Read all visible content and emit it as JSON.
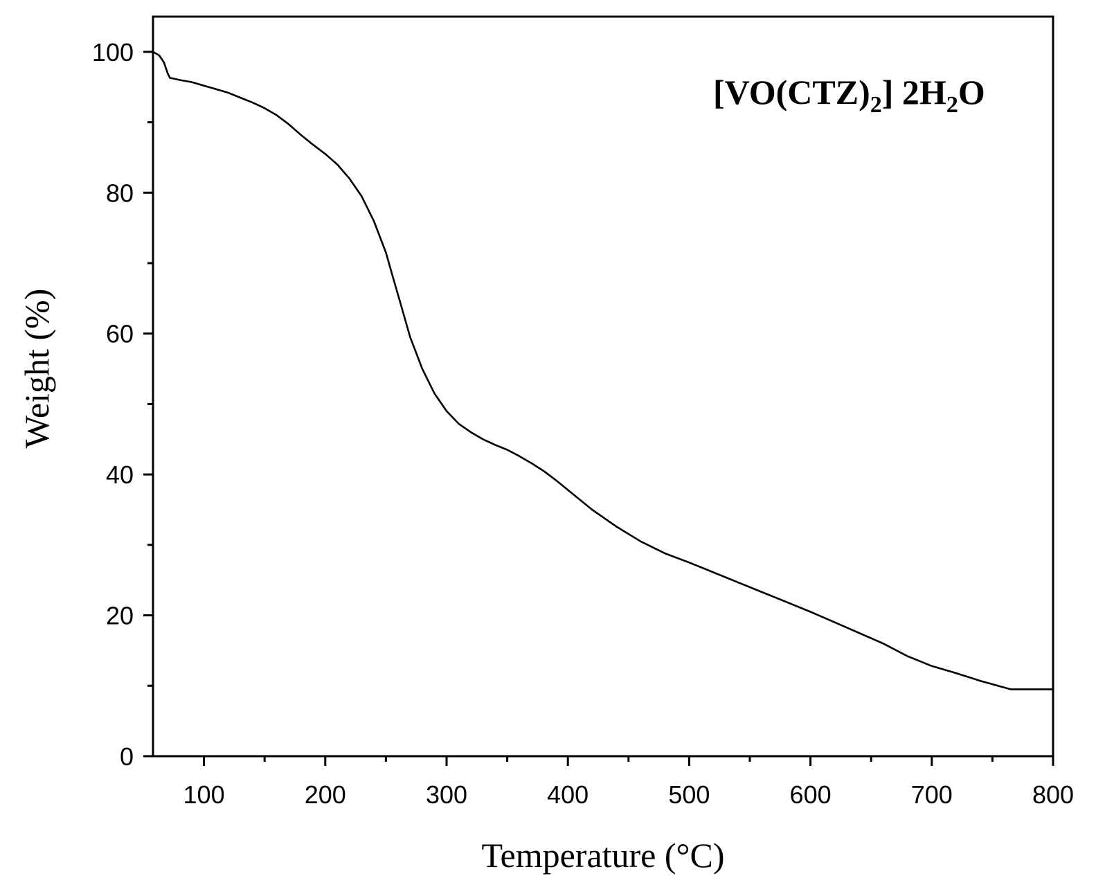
{
  "chart_data": {
    "type": "line",
    "xlabel": "Temperature (°C)",
    "ylabel": "Weight (%)",
    "xlim": [
      58,
      800
    ],
    "ylim": [
      0,
      105
    ],
    "x_ticks": [
      100,
      200,
      300,
      400,
      500,
      600,
      700,
      800
    ],
    "y_ticks": [
      0,
      20,
      40,
      60,
      80,
      100
    ],
    "annotation": {
      "parts": [
        {
          "text": "[VO(CTZ)",
          "sub": false
        },
        {
          "text": "2",
          "sub": true
        },
        {
          "text": "] 2H",
          "sub": false
        },
        {
          "text": "2",
          "sub": true
        },
        {
          "text": "O",
          "sub": false
        }
      ],
      "position": "top-right"
    },
    "grid": false,
    "legend": "none",
    "line_color": "#000000",
    "series": [
      {
        "x": [
          58,
          63,
          67,
          70,
          72,
          75,
          80,
          90,
          100,
          110,
          120,
          130,
          140,
          150,
          160,
          170,
          180,
          190,
          200,
          210,
          220,
          230,
          240,
          250,
          255,
          260,
          265,
          270,
          280,
          290,
          300,
          310,
          320,
          330,
          340,
          350,
          360,
          370,
          380,
          390,
          400,
          420,
          440,
          460,
          480,
          500,
          520,
          540,
          560,
          580,
          600,
          620,
          640,
          660,
          680,
          700,
          720,
          740,
          765,
          800
        ],
        "y": [
          100,
          99.5,
          98.5,
          97,
          96.3,
          96.2,
          96,
          95.7,
          95.2,
          94.7,
          94.2,
          93.5,
          92.8,
          92,
          91,
          89.7,
          88.2,
          86.8,
          85.5,
          84,
          82,
          79.5,
          76,
          71.5,
          68.5,
          65.5,
          62.5,
          59.5,
          55,
          51.5,
          49,
          47.2,
          46,
          45,
          44.2,
          43.5,
          42.6,
          41.6,
          40.5,
          39.2,
          37.8,
          35,
          32.6,
          30.5,
          28.8,
          27.5,
          26.1,
          24.7,
          23.3,
          21.9,
          20.5,
          19,
          17.5,
          16,
          14.2,
          12.8,
          11.8,
          10.7,
          9.5,
          9.5
        ]
      }
    ]
  }
}
